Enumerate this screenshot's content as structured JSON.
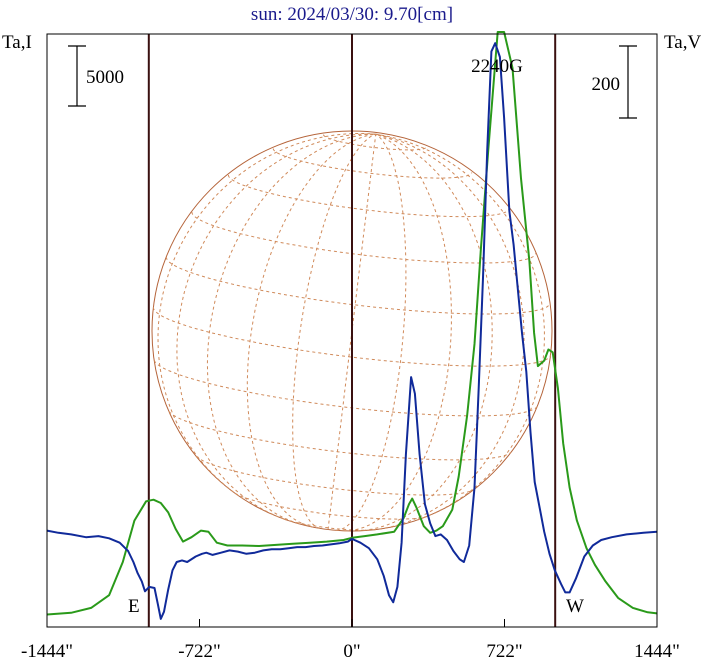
{
  "chart_data": {
    "type": "line",
    "title": "sun: 2024/03/30: 9.70[cm]",
    "left_axis_label": "Ta,I",
    "right_axis_label": "Ta,V",
    "left_scale_bar": "5000",
    "right_scale_bar": "200",
    "xlim": [
      -1444,
      1444
    ],
    "x_ticks": [
      -1444,
      -722,
      0,
      722,
      1444
    ],
    "x_tick_labels": [
      "-1444\"",
      "-722\"",
      "0\"",
      "722\"",
      "1444\""
    ],
    "vertical_lines": [
      -962,
      0,
      962
    ],
    "limb_labels": {
      "east": "E",
      "west": "W"
    },
    "annotations": [
      {
        "text": "2240G",
        "x": 722
      }
    ],
    "solar_disk": {
      "radius_arcsec": 962,
      "grid": true
    },
    "series": [
      {
        "color": "#2a9a1a",
        "points": [
          [
            -1444,
            -90
          ],
          [
            -1330,
            -87
          ],
          [
            -1235,
            -78
          ],
          [
            -1150,
            -55
          ],
          [
            -1085,
            5
          ],
          [
            -1030,
            80
          ],
          [
            -975,
            115
          ],
          [
            -940,
            118
          ],
          [
            -905,
            112
          ],
          [
            -870,
            95
          ],
          [
            -835,
            65
          ],
          [
            -800,
            42
          ],
          [
            -760,
            50
          ],
          [
            -715,
            62
          ],
          [
            -680,
            60
          ],
          [
            -640,
            40
          ],
          [
            -590,
            35
          ],
          [
            -520,
            35
          ],
          [
            -440,
            34
          ],
          [
            -360,
            36
          ],
          [
            -280,
            38
          ],
          [
            -200,
            40
          ],
          [
            -120,
            42
          ],
          [
            -40,
            45
          ],
          [
            0,
            49
          ],
          [
            60,
            52
          ],
          [
            120,
            55
          ],
          [
            200,
            60
          ],
          [
            245,
            85
          ],
          [
            270,
            110
          ],
          [
            285,
            120
          ],
          [
            305,
            104
          ],
          [
            340,
            70
          ],
          [
            370,
            58
          ],
          [
            400,
            62
          ],
          [
            430,
            70
          ],
          [
            475,
            100
          ],
          [
            505,
            160
          ],
          [
            545,
            270
          ],
          [
            580,
            400
          ],
          [
            610,
            570
          ],
          [
            645,
            750
          ],
          [
            690,
            990
          ],
          [
            720,
            1000
          ],
          [
            760,
            900
          ],
          [
            800,
            700
          ],
          [
            840,
            550
          ],
          [
            862,
            420
          ],
          [
            880,
            360
          ],
          [
            910,
            370
          ],
          [
            930,
            390
          ],
          [
            950,
            385
          ],
          [
            975,
            320
          ],
          [
            1000,
            220
          ],
          [
            1030,
            140
          ],
          [
            1065,
            80
          ],
          [
            1110,
            30
          ],
          [
            1150,
            0
          ],
          [
            1200,
            -30
          ],
          [
            1260,
            -60
          ],
          [
            1330,
            -78
          ],
          [
            1400,
            -86
          ],
          [
            1444,
            -88
          ]
        ]
      },
      {
        "color": "#102a9a",
        "points": [
          [
            -1444,
            62
          ],
          [
            -1390,
            58
          ],
          [
            -1330,
            55
          ],
          [
            -1260,
            50
          ],
          [
            -1200,
            52
          ],
          [
            -1150,
            48
          ],
          [
            -1100,
            40
          ],
          [
            -1060,
            25
          ],
          [
            -1035,
            5
          ],
          [
            -1015,
            -15
          ],
          [
            -995,
            -30
          ],
          [
            -980,
            -48
          ],
          [
            -960,
            -40
          ],
          [
            -935,
            -42
          ],
          [
            -920,
            -70
          ],
          [
            -905,
            -98
          ],
          [
            -890,
            -85
          ],
          [
            -870,
            -45
          ],
          [
            -850,
            -10
          ],
          [
            -830,
            5
          ],
          [
            -805,
            8
          ],
          [
            -780,
            5
          ],
          [
            -740,
            15
          ],
          [
            -710,
            20
          ],
          [
            -690,
            22
          ],
          [
            -660,
            18
          ],
          [
            -620,
            22
          ],
          [
            -580,
            26
          ],
          [
            -540,
            24
          ],
          [
            -500,
            20
          ],
          [
            -460,
            22
          ],
          [
            -420,
            26
          ],
          [
            -380,
            28
          ],
          [
            -340,
            28
          ],
          [
            -300,
            30
          ],
          [
            -260,
            32
          ],
          [
            -220,
            32
          ],
          [
            -180,
            34
          ],
          [
            -140,
            35
          ],
          [
            -100,
            37
          ],
          [
            -60,
            39
          ],
          [
            -20,
            42
          ],
          [
            0,
            47
          ],
          [
            40,
            40
          ],
          [
            80,
            30
          ],
          [
            120,
            10
          ],
          [
            150,
            -20
          ],
          [
            175,
            -55
          ],
          [
            195,
            -68
          ],
          [
            215,
            -40
          ],
          [
            235,
            40
          ],
          [
            255,
            200
          ],
          [
            280,
            340
          ],
          [
            298,
            310
          ],
          [
            320,
            200
          ],
          [
            345,
            110
          ],
          [
            370,
            75
          ],
          [
            395,
            52
          ],
          [
            420,
            55
          ],
          [
            450,
            45
          ],
          [
            480,
            25
          ],
          [
            510,
            10
          ],
          [
            530,
            5
          ],
          [
            555,
            35
          ],
          [
            580,
            140
          ],
          [
            600,
            320
          ],
          [
            620,
            520
          ],
          [
            640,
            750
          ],
          [
            660,
            930
          ],
          [
            678,
            945
          ],
          [
            700,
            920
          ],
          [
            720,
            810
          ],
          [
            745,
            640
          ],
          [
            765,
            580
          ],
          [
            785,
            500
          ],
          [
            805,
            420
          ],
          [
            825,
            350
          ],
          [
            845,
            240
          ],
          [
            865,
            150
          ],
          [
            890,
            100
          ],
          [
            910,
            60
          ],
          [
            935,
            20
          ],
          [
            960,
            -10
          ],
          [
            990,
            -35
          ],
          [
            1010,
            -50
          ],
          [
            1030,
            -50
          ],
          [
            1060,
            -25
          ],
          [
            1100,
            15
          ],
          [
            1140,
            35
          ],
          [
            1180,
            45
          ],
          [
            1230,
            50
          ],
          [
            1300,
            55
          ],
          [
            1380,
            58
          ],
          [
            1444,
            60
          ]
        ]
      }
    ]
  }
}
